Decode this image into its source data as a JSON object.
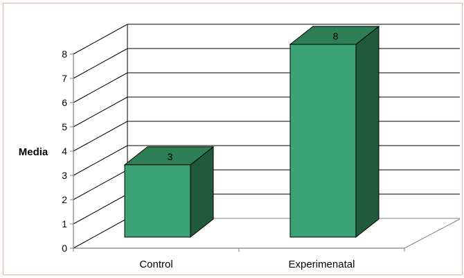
{
  "chart_data": {
    "type": "bar",
    "style": "3d-column",
    "categories": [
      "Control",
      "Experimenatal"
    ],
    "values": [
      3,
      8
    ],
    "ylabel": "Media",
    "xlabel": "",
    "ylim": [
      0,
      8
    ],
    "yticks": [
      "0",
      "1",
      "2",
      "3",
      "4",
      "5",
      "6",
      "7",
      "8"
    ],
    "data_labels": [
      "3",
      "8"
    ],
    "grid": true,
    "legend": false,
    "colors": {
      "bar_front": "#3ca375",
      "bar_top": "#2e7f55",
      "bar_side": "#1f5a3c",
      "frame_border": "#e0b4a8"
    }
  }
}
